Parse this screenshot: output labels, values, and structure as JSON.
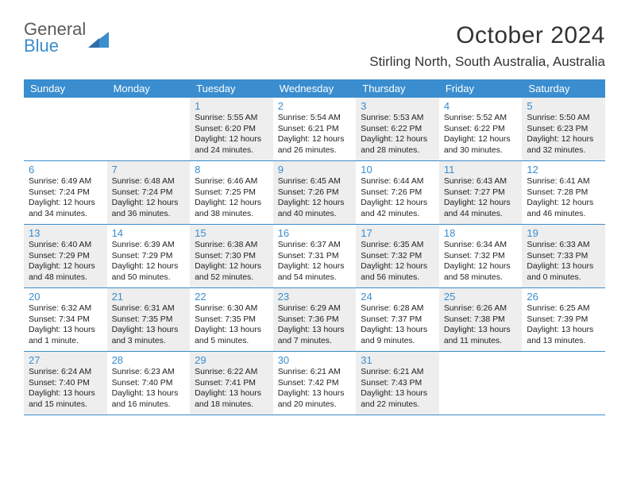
{
  "logo": {
    "text1": "General",
    "text2": "Blue"
  },
  "title": "October 2024",
  "location": "Stirling North, South Australia, Australia",
  "colors": {
    "accent": "#3a8dce",
    "highlight": "#eeeeee",
    "text": "#222222",
    "logo_gray": "#5b5b5b"
  },
  "day_headers": [
    "Sunday",
    "Monday",
    "Tuesday",
    "Wednesday",
    "Thursday",
    "Friday",
    "Saturday"
  ],
  "weeks": [
    [
      {
        "num": "",
        "sunrise": "",
        "sunset": "",
        "daylight": "",
        "hl": false
      },
      {
        "num": "",
        "sunrise": "",
        "sunset": "",
        "daylight": "",
        "hl": false
      },
      {
        "num": "1",
        "sunrise": "Sunrise: 5:55 AM",
        "sunset": "Sunset: 6:20 PM",
        "daylight": "Daylight: 12 hours and 24 minutes.",
        "hl": true
      },
      {
        "num": "2",
        "sunrise": "Sunrise: 5:54 AM",
        "sunset": "Sunset: 6:21 PM",
        "daylight": "Daylight: 12 hours and 26 minutes.",
        "hl": false
      },
      {
        "num": "3",
        "sunrise": "Sunrise: 5:53 AM",
        "sunset": "Sunset: 6:22 PM",
        "daylight": "Daylight: 12 hours and 28 minutes.",
        "hl": true
      },
      {
        "num": "4",
        "sunrise": "Sunrise: 5:52 AM",
        "sunset": "Sunset: 6:22 PM",
        "daylight": "Daylight: 12 hours and 30 minutes.",
        "hl": false
      },
      {
        "num": "5",
        "sunrise": "Sunrise: 5:50 AM",
        "sunset": "Sunset: 6:23 PM",
        "daylight": "Daylight: 12 hours and 32 minutes.",
        "hl": true
      }
    ],
    [
      {
        "num": "6",
        "sunrise": "Sunrise: 6:49 AM",
        "sunset": "Sunset: 7:24 PM",
        "daylight": "Daylight: 12 hours and 34 minutes.",
        "hl": false
      },
      {
        "num": "7",
        "sunrise": "Sunrise: 6:48 AM",
        "sunset": "Sunset: 7:24 PM",
        "daylight": "Daylight: 12 hours and 36 minutes.",
        "hl": true
      },
      {
        "num": "8",
        "sunrise": "Sunrise: 6:46 AM",
        "sunset": "Sunset: 7:25 PM",
        "daylight": "Daylight: 12 hours and 38 minutes.",
        "hl": false
      },
      {
        "num": "9",
        "sunrise": "Sunrise: 6:45 AM",
        "sunset": "Sunset: 7:26 PM",
        "daylight": "Daylight: 12 hours and 40 minutes.",
        "hl": true
      },
      {
        "num": "10",
        "sunrise": "Sunrise: 6:44 AM",
        "sunset": "Sunset: 7:26 PM",
        "daylight": "Daylight: 12 hours and 42 minutes.",
        "hl": false
      },
      {
        "num": "11",
        "sunrise": "Sunrise: 6:43 AM",
        "sunset": "Sunset: 7:27 PM",
        "daylight": "Daylight: 12 hours and 44 minutes.",
        "hl": true
      },
      {
        "num": "12",
        "sunrise": "Sunrise: 6:41 AM",
        "sunset": "Sunset: 7:28 PM",
        "daylight": "Daylight: 12 hours and 46 minutes.",
        "hl": false
      }
    ],
    [
      {
        "num": "13",
        "sunrise": "Sunrise: 6:40 AM",
        "sunset": "Sunset: 7:29 PM",
        "daylight": "Daylight: 12 hours and 48 minutes.",
        "hl": true
      },
      {
        "num": "14",
        "sunrise": "Sunrise: 6:39 AM",
        "sunset": "Sunset: 7:29 PM",
        "daylight": "Daylight: 12 hours and 50 minutes.",
        "hl": false
      },
      {
        "num": "15",
        "sunrise": "Sunrise: 6:38 AM",
        "sunset": "Sunset: 7:30 PM",
        "daylight": "Daylight: 12 hours and 52 minutes.",
        "hl": true
      },
      {
        "num": "16",
        "sunrise": "Sunrise: 6:37 AM",
        "sunset": "Sunset: 7:31 PM",
        "daylight": "Daylight: 12 hours and 54 minutes.",
        "hl": false
      },
      {
        "num": "17",
        "sunrise": "Sunrise: 6:35 AM",
        "sunset": "Sunset: 7:32 PM",
        "daylight": "Daylight: 12 hours and 56 minutes.",
        "hl": true
      },
      {
        "num": "18",
        "sunrise": "Sunrise: 6:34 AM",
        "sunset": "Sunset: 7:32 PM",
        "daylight": "Daylight: 12 hours and 58 minutes.",
        "hl": false
      },
      {
        "num": "19",
        "sunrise": "Sunrise: 6:33 AM",
        "sunset": "Sunset: 7:33 PM",
        "daylight": "Daylight: 13 hours and 0 minutes.",
        "hl": true
      }
    ],
    [
      {
        "num": "20",
        "sunrise": "Sunrise: 6:32 AM",
        "sunset": "Sunset: 7:34 PM",
        "daylight": "Daylight: 13 hours and 1 minute.",
        "hl": false
      },
      {
        "num": "21",
        "sunrise": "Sunrise: 6:31 AM",
        "sunset": "Sunset: 7:35 PM",
        "daylight": "Daylight: 13 hours and 3 minutes.",
        "hl": true
      },
      {
        "num": "22",
        "sunrise": "Sunrise: 6:30 AM",
        "sunset": "Sunset: 7:35 PM",
        "daylight": "Daylight: 13 hours and 5 minutes.",
        "hl": false
      },
      {
        "num": "23",
        "sunrise": "Sunrise: 6:29 AM",
        "sunset": "Sunset: 7:36 PM",
        "daylight": "Daylight: 13 hours and 7 minutes.",
        "hl": true
      },
      {
        "num": "24",
        "sunrise": "Sunrise: 6:28 AM",
        "sunset": "Sunset: 7:37 PM",
        "daylight": "Daylight: 13 hours and 9 minutes.",
        "hl": false
      },
      {
        "num": "25",
        "sunrise": "Sunrise: 6:26 AM",
        "sunset": "Sunset: 7:38 PM",
        "daylight": "Daylight: 13 hours and 11 minutes.",
        "hl": true
      },
      {
        "num": "26",
        "sunrise": "Sunrise: 6:25 AM",
        "sunset": "Sunset: 7:39 PM",
        "daylight": "Daylight: 13 hours and 13 minutes.",
        "hl": false
      }
    ],
    [
      {
        "num": "27",
        "sunrise": "Sunrise: 6:24 AM",
        "sunset": "Sunset: 7:40 PM",
        "daylight": "Daylight: 13 hours and 15 minutes.",
        "hl": true
      },
      {
        "num": "28",
        "sunrise": "Sunrise: 6:23 AM",
        "sunset": "Sunset: 7:40 PM",
        "daylight": "Daylight: 13 hours and 16 minutes.",
        "hl": false
      },
      {
        "num": "29",
        "sunrise": "Sunrise: 6:22 AM",
        "sunset": "Sunset: 7:41 PM",
        "daylight": "Daylight: 13 hours and 18 minutes.",
        "hl": true
      },
      {
        "num": "30",
        "sunrise": "Sunrise: 6:21 AM",
        "sunset": "Sunset: 7:42 PM",
        "daylight": "Daylight: 13 hours and 20 minutes.",
        "hl": false
      },
      {
        "num": "31",
        "sunrise": "Sunrise: 6:21 AM",
        "sunset": "Sunset: 7:43 PM",
        "daylight": "Daylight: 13 hours and 22 minutes.",
        "hl": true
      },
      {
        "num": "",
        "sunrise": "",
        "sunset": "",
        "daylight": "",
        "hl": false
      },
      {
        "num": "",
        "sunrise": "",
        "sunset": "",
        "daylight": "",
        "hl": false
      }
    ]
  ]
}
